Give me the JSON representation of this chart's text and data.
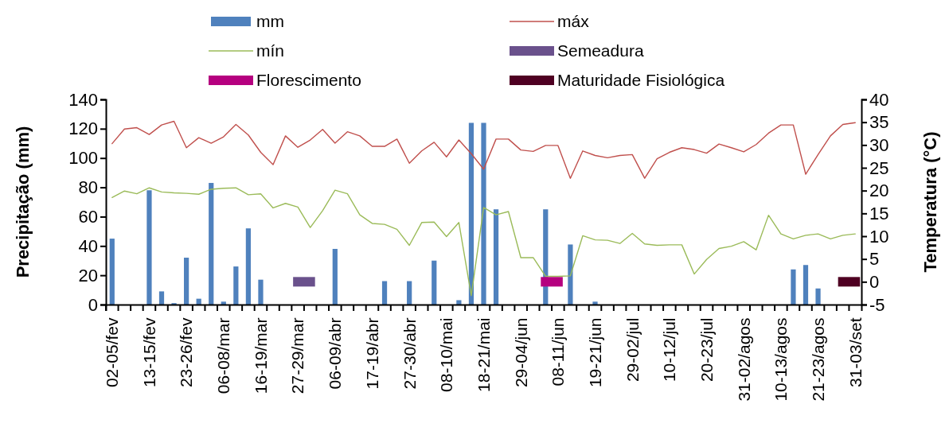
{
  "chart_data": {
    "type": "bar",
    "ylabel": "Precipitação (mm)",
    "y2label": "Temperatura (°C)",
    "categories": [
      "02-05/fev",
      null,
      null,
      "13-15/fev",
      null,
      null,
      "23-26/fev",
      null,
      null,
      "06-08/mar",
      null,
      null,
      "16-19/mar",
      null,
      null,
      "27-29/mar",
      null,
      null,
      "06-09/abr",
      null,
      null,
      "17-19/abr",
      null,
      null,
      "27-30/abr",
      null,
      null,
      "08-10/mai",
      null,
      null,
      "18-21/mai",
      null,
      null,
      "29-04/jun",
      null,
      null,
      "08-11/jun",
      null,
      null,
      "19-21/jun",
      null,
      null,
      "29-02/jul",
      null,
      null,
      "10-12/jul",
      null,
      null,
      "20-23/jul",
      null,
      null,
      "31-02/agos",
      null,
      null,
      "10-13/agos",
      null,
      null,
      "21-23/agos",
      null,
      null,
      "31-03/set"
    ],
    "ylim": [
      0,
      140
    ],
    "yticks": [
      0,
      20,
      40,
      60,
      80,
      100,
      120,
      140
    ],
    "y2lim": [
      -5,
      40
    ],
    "y2ticks": [
      -5,
      0,
      5,
      10,
      15,
      20,
      25,
      30,
      35,
      40
    ],
    "grid": false,
    "legend": "top",
    "marker": "none",
    "series": [
      {
        "name": "mm",
        "color": "#4f81bd",
        "values": [
          45,
          null,
          null,
          78,
          9,
          1,
          32,
          4,
          83,
          2,
          26,
          52,
          17,
          null,
          null,
          null,
          null,
          null,
          38,
          null,
          null,
          null,
          16,
          null,
          16,
          null,
          30,
          null,
          3,
          124,
          124,
          65,
          null,
          null,
          null,
          65,
          null,
          41,
          null,
          2,
          null,
          null,
          null,
          null,
          null,
          null,
          null,
          null,
          null,
          null,
          null,
          null,
          null,
          null,
          null,
          24,
          27,
          11,
          null,
          null,
          null
        ]
      },
      {
        "name": "máx",
        "type": "line",
        "axis": "y2",
        "color": "#c0504d",
        "values": [
          30.3,
          33.5,
          33.8,
          32.3,
          34.4,
          35.2,
          29.4,
          31.6,
          30.4,
          31.8,
          34.5,
          32.2,
          28.4,
          25.7,
          32.0,
          29.5,
          31.1,
          33.4,
          30.4,
          32.9,
          32.0,
          29.7,
          29.7,
          31.3,
          26.0,
          28.7,
          30.6,
          27.4,
          31.1,
          28.1,
          24.7,
          31.3,
          31.3,
          28.9,
          28.6,
          29.9,
          29.9,
          22.7,
          28.7,
          27.7,
          27.2,
          27.7,
          27.9,
          22.7,
          27.0,
          28.4,
          29.4,
          29.0,
          28.2,
          30.2,
          29.4,
          28.5,
          30.1,
          32.6,
          34.4,
          34.4,
          23.6,
          27.9,
          32.0,
          34.5,
          34.9
        ]
      },
      {
        "name": "mín",
        "type": "line",
        "axis": "y2",
        "color": "#9bbb59",
        "values": [
          18.5,
          19.9,
          19.3,
          20.6,
          19.7,
          19.5,
          19.4,
          19.2,
          20.3,
          20.5,
          20.6,
          19.1,
          19.3,
          16.2,
          17.2,
          16.4,
          11.9,
          15.6,
          20.1,
          19.3,
          14.7,
          12.8,
          12.6,
          11.5,
          8.0,
          13.0,
          13.1,
          9.9,
          13.0,
          -3.0,
          16.3,
          14.7,
          15.4,
          5.3,
          5.3,
          1.2,
          1.2,
          1.3,
          10.1,
          9.2,
          9.1,
          8.4,
          10.6,
          8.3,
          8.0,
          8.1,
          8.1,
          1.7,
          4.9,
          7.3,
          7.8,
          8.8,
          7.0,
          14.6,
          10.5,
          9.4,
          10.2,
          10.5,
          9.4,
          10.2,
          10.5
        ]
      },
      {
        "name": "Semeadura",
        "type": "line",
        "axis": "y2",
        "color": "#6a518c",
        "values": [
          null,
          null,
          null,
          null,
          null,
          null,
          null,
          null,
          null,
          null,
          null,
          null,
          null,
          null,
          null,
          0,
          0,
          null,
          null,
          null,
          null,
          null,
          null,
          null,
          null,
          null,
          null,
          null,
          null,
          null,
          null,
          null,
          null,
          null,
          null,
          null,
          null,
          null,
          null,
          null,
          null,
          null,
          null,
          null,
          null,
          null,
          null,
          null,
          null,
          null,
          null,
          null,
          null,
          null,
          null,
          null,
          null,
          null,
          null,
          null,
          null
        ]
      },
      {
        "name": "Florescimento",
        "type": "line",
        "axis": "y2",
        "color": "#b5007f",
        "values": [
          null,
          null,
          null,
          null,
          null,
          null,
          null,
          null,
          null,
          null,
          null,
          null,
          null,
          null,
          null,
          null,
          null,
          null,
          null,
          null,
          null,
          null,
          null,
          null,
          null,
          null,
          null,
          null,
          null,
          null,
          null,
          null,
          null,
          null,
          null,
          0,
          0,
          null,
          null,
          null,
          null,
          null,
          null,
          null,
          null,
          null,
          null,
          null,
          null,
          null,
          null,
          null,
          null,
          null,
          null,
          null,
          null,
          null,
          null,
          null,
          null
        ]
      },
      {
        "name": "Maturidade Fisiológica",
        "type": "line",
        "axis": "y2",
        "color": "#4f0022",
        "values": [
          null,
          null,
          null,
          null,
          null,
          null,
          null,
          null,
          null,
          null,
          null,
          null,
          null,
          null,
          null,
          null,
          null,
          null,
          null,
          null,
          null,
          null,
          null,
          null,
          null,
          null,
          null,
          null,
          null,
          null,
          null,
          null,
          null,
          null,
          null,
          null,
          null,
          null,
          null,
          null,
          null,
          null,
          null,
          null,
          null,
          null,
          null,
          null,
          null,
          null,
          null,
          null,
          null,
          null,
          null,
          null,
          null,
          null,
          null,
          0,
          0
        ]
      }
    ]
  }
}
